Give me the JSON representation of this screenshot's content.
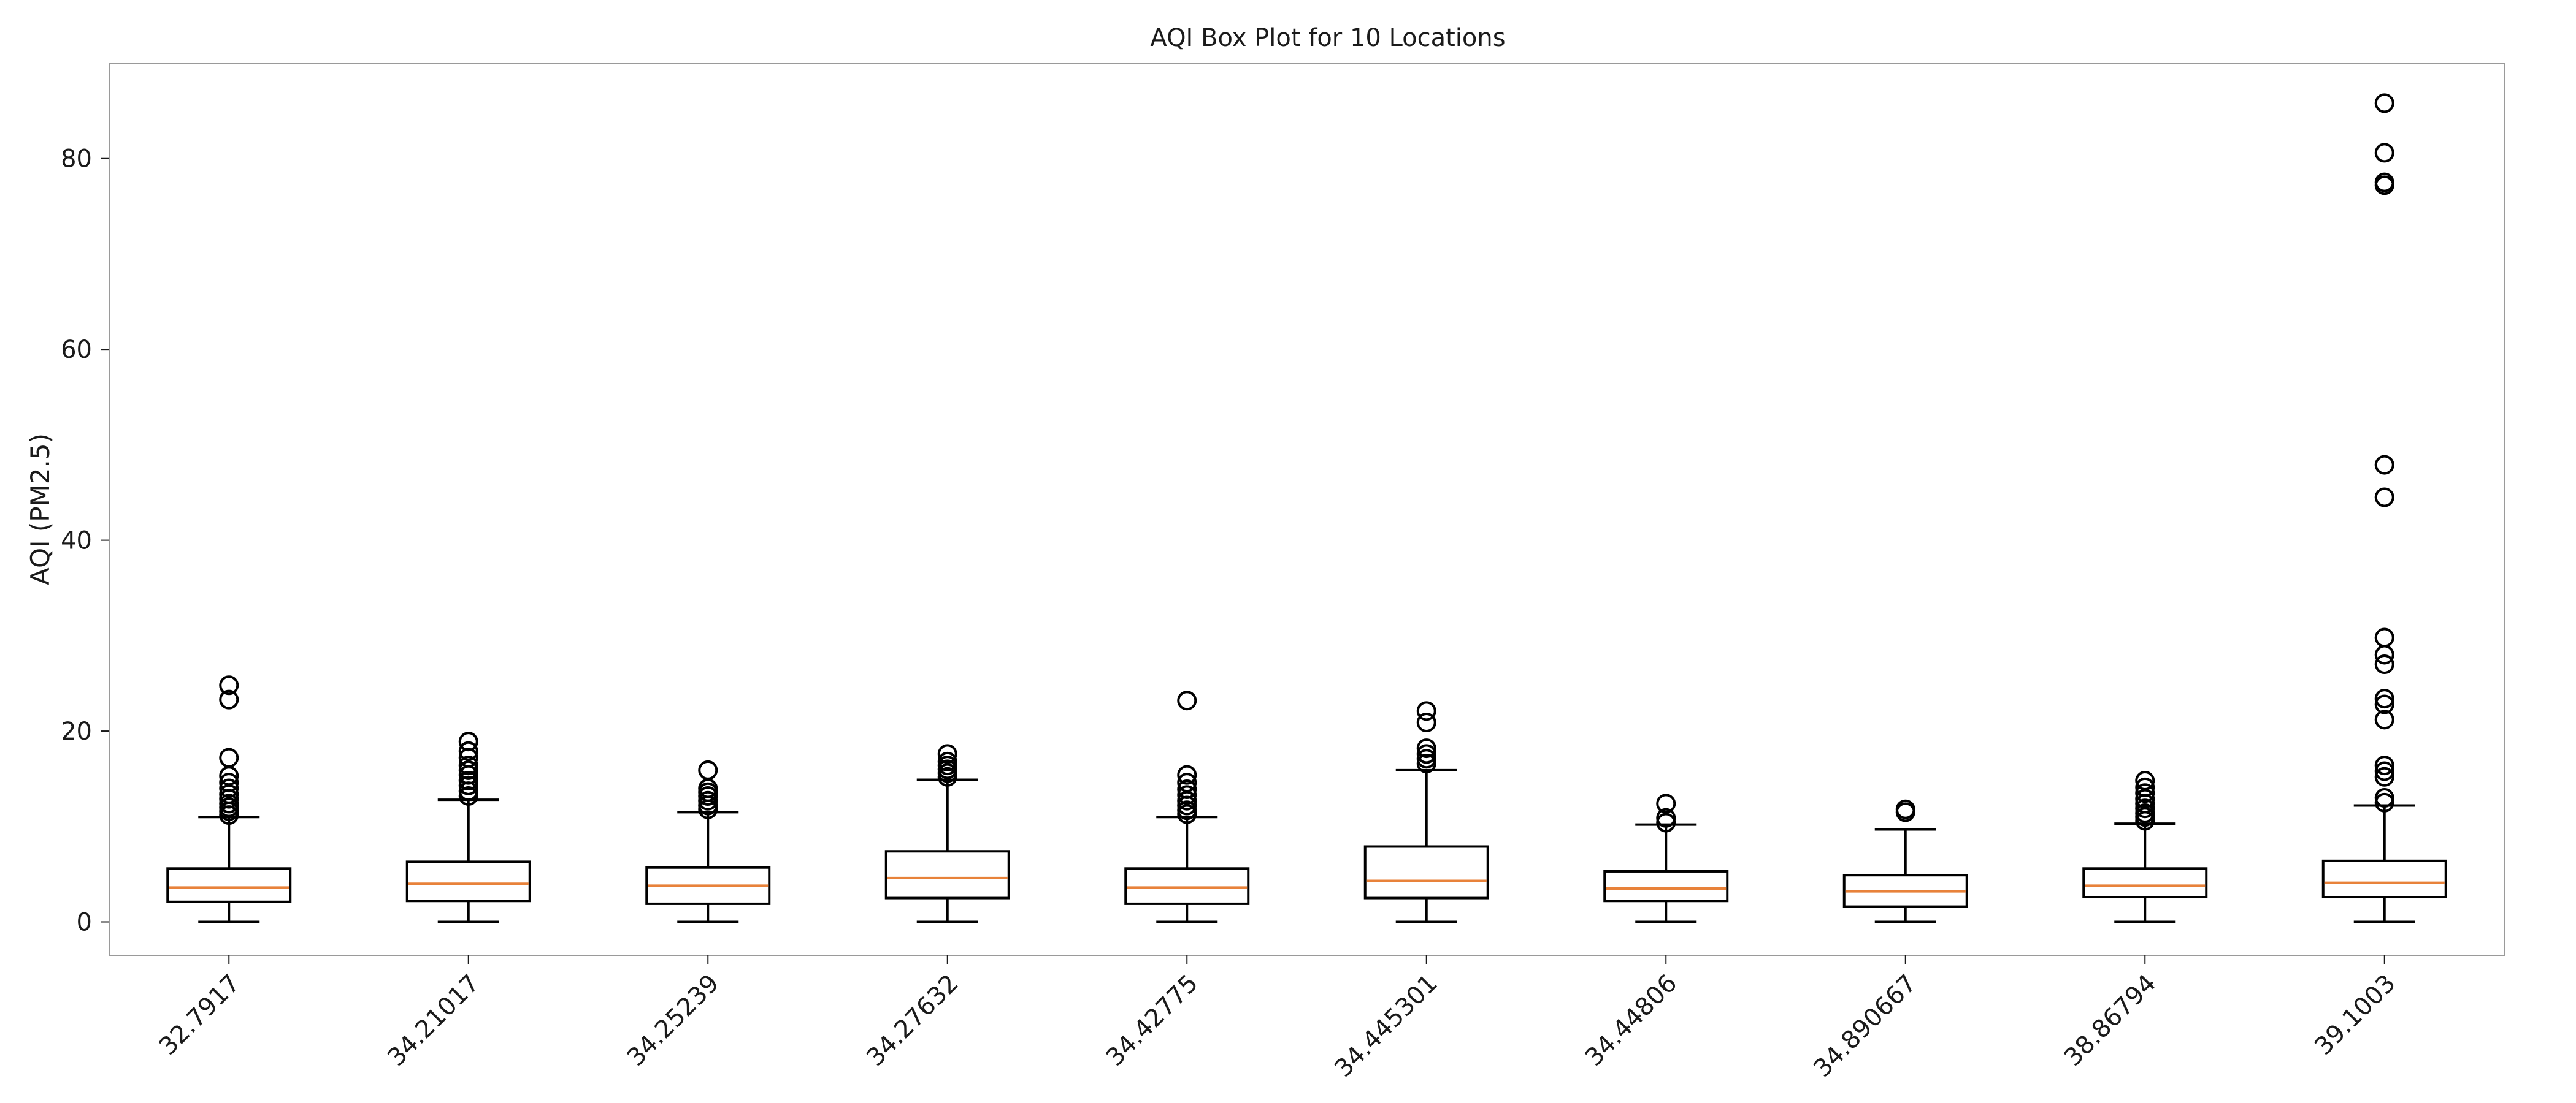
{
  "chart_data": {
    "type": "box",
    "title": "AQI Box Plot for 10 Locations",
    "xlabel": "",
    "ylabel": "AQI (PM2.5)",
    "ylim": [
      -3.5,
      90
    ],
    "yticks": [
      0,
      20,
      40,
      60,
      80
    ],
    "grid": false,
    "colors": {
      "box": "#000000",
      "median": "#e8823a",
      "frame": "#9a9a9a"
    },
    "categories": [
      "32.7917",
      "34.21017",
      "34.25239",
      "34.27632",
      "34.42775",
      "34.445301",
      "34.44806",
      "34.890667",
      "38.86794",
      "39.1003"
    ],
    "boxes": [
      {
        "whislo": 0,
        "q1": 2.1,
        "med": 3.6,
        "q3": 5.6,
        "whishi": 11.0,
        "fliers": [
          11.2,
          11.6,
          12.0,
          12.4,
          12.9,
          13.4,
          14.0,
          14.6,
          15.3,
          17.2,
          23.3,
          24.8
        ]
      },
      {
        "whislo": 0,
        "q1": 2.2,
        "med": 4.0,
        "q3": 6.3,
        "whishi": 12.8,
        "fliers": [
          13.2,
          13.7,
          14.3,
          14.8,
          15.4,
          15.9,
          16.4,
          17.2,
          17.9,
          18.9
        ]
      },
      {
        "whislo": 0,
        "q1": 1.9,
        "med": 3.8,
        "q3": 5.7,
        "whishi": 11.5,
        "fliers": [
          11.8,
          12.2,
          12.7,
          13.2,
          13.6,
          14.0,
          15.9
        ]
      },
      {
        "whislo": 0,
        "q1": 2.5,
        "med": 4.6,
        "q3": 7.4,
        "whishi": 14.9,
        "fliers": [
          15.2,
          15.6,
          16.0,
          16.4,
          16.8,
          17.6
        ]
      },
      {
        "whislo": 0,
        "q1": 1.9,
        "med": 3.6,
        "q3": 5.6,
        "whishi": 11.0,
        "fliers": [
          11.3,
          11.7,
          12.2,
          12.7,
          13.3,
          13.9,
          14.6,
          15.4,
          23.2
        ]
      },
      {
        "whislo": 0,
        "q1": 2.5,
        "med": 4.3,
        "q3": 7.9,
        "whishi": 15.9,
        "fliers": [
          16.6,
          17.1,
          17.6,
          18.2,
          20.9,
          22.1
        ]
      },
      {
        "whislo": 0,
        "q1": 2.2,
        "med": 3.5,
        "q3": 5.3,
        "whishi": 10.2,
        "fliers": [
          10.4,
          10.9,
          12.4
        ]
      },
      {
        "whislo": 0,
        "q1": 1.6,
        "med": 3.2,
        "q3": 4.9,
        "whishi": 9.7,
        "fliers": [
          11.5,
          11.8
        ]
      },
      {
        "whislo": 0,
        "q1": 2.6,
        "med": 3.8,
        "q3": 5.6,
        "whishi": 10.3,
        "fliers": [
          10.6,
          11.0,
          11.4,
          11.9,
          12.4,
          12.9,
          13.5,
          14.1,
          14.8
        ]
      },
      {
        "whislo": 0,
        "q1": 2.6,
        "med": 4.1,
        "q3": 6.4,
        "whishi": 12.2,
        "fliers": [
          12.5,
          13.0,
          15.2,
          15.8,
          16.4,
          21.2,
          22.8,
          23.4,
          27.0,
          28.0,
          29.8,
          44.5,
          47.9,
          77.2,
          77.5,
          80.6,
          85.8
        ]
      }
    ]
  }
}
